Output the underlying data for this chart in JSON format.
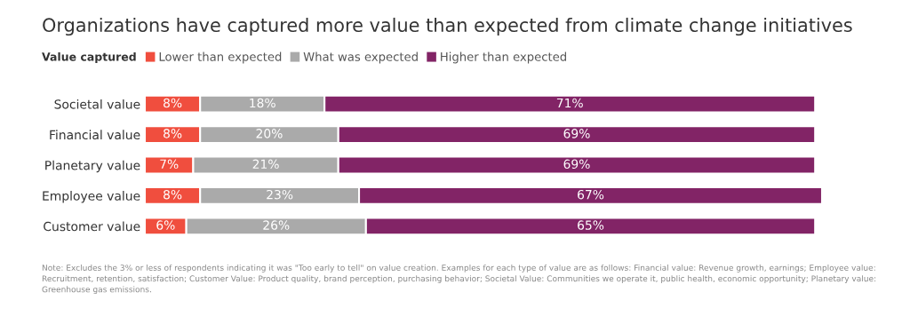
{
  "chart_data": {
    "type": "bar",
    "orientation": "horizontal",
    "stacked": true,
    "title": "Organizations have captured more value than expected from climate change initiatives",
    "legend_title": "Value captured",
    "legend": "top left",
    "categories": [
      "Societal value",
      "Financial value",
      "Planetary value",
      "Employee value",
      "Customer value"
    ],
    "series": [
      {
        "name": "Lower than expected",
        "color": "#f04e3e",
        "values": [
          8,
          8,
          7,
          8,
          6
        ],
        "value_labels": [
          "8%",
          "8%",
          "7%",
          "8%",
          "6%"
        ]
      },
      {
        "name": "What was expected",
        "color": "#aaaaaa",
        "values": [
          18,
          20,
          21,
          23,
          26
        ],
        "value_labels": [
          "18%",
          "20%",
          "21%",
          "23%",
          "26%"
        ]
      },
      {
        "name": "Higher than expected",
        "color": "#822466",
        "values": [
          71,
          69,
          69,
          67,
          65
        ],
        "value_labels": [
          "71%",
          "69%",
          "69%",
          "67%",
          "65%"
        ]
      }
    ],
    "grid": false,
    "annotations": [
      "Note: Excludes the 3% or less of respondents indicating it was \"Too early to tell\" on value creation. Examples for each type of value are as follows: Financial value: Revenue growth, earnings; Employee value: Recruitment, retention, satisfaction; Customer Value: Product quality, brand perception, purchasing behavior; Societal Value: Communities we operate it, public health, economic opportunity; Planetary value: Greenhouse gas emissions."
    ]
  }
}
